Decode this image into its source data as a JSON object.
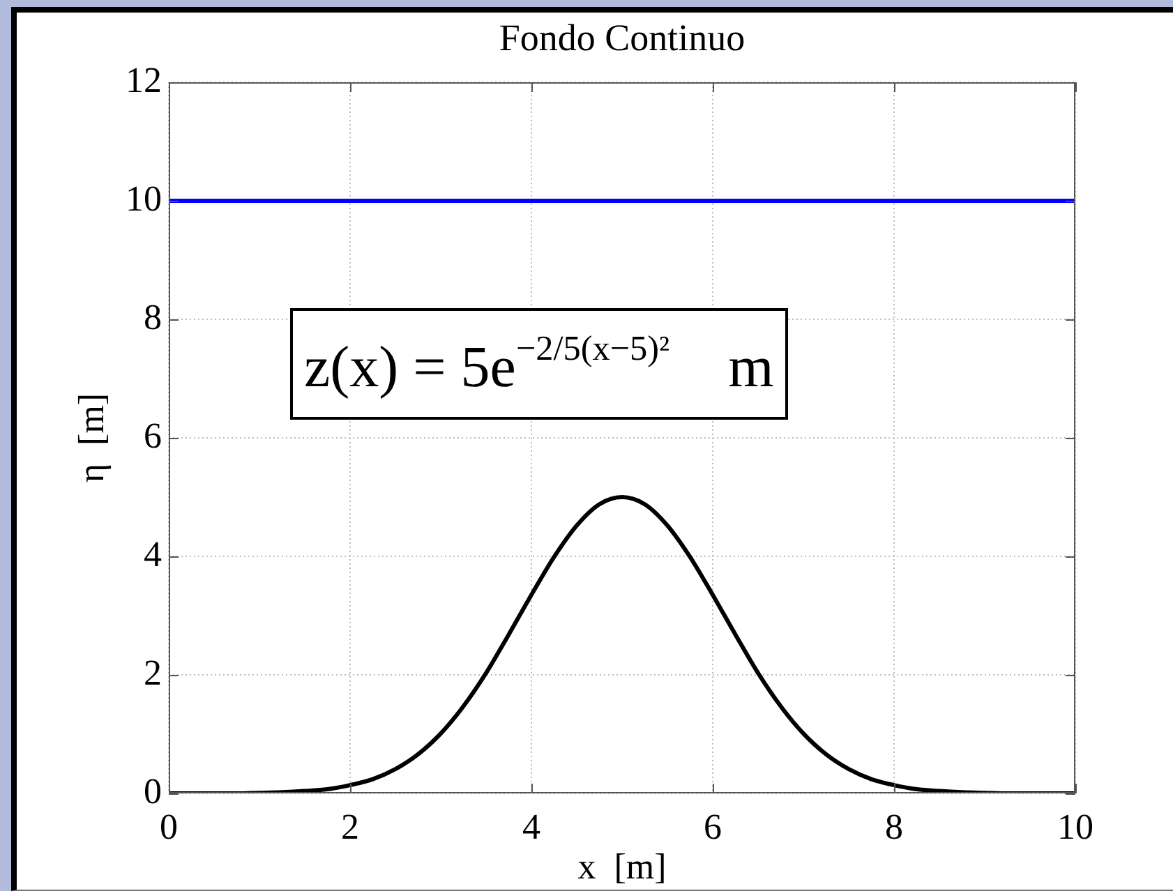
{
  "chart_data": {
    "type": "line",
    "title": "Fondo Continuo",
    "xlabel": "x  [m]",
    "ylabel": "η  [m]",
    "series": [
      {
        "color": "#0000ff",
        "x": [
          0,
          10
        ],
        "values": [
          10,
          10
        ]
      },
      {
        "color": "#000000",
        "x": [
          0,
          0.25,
          0.5,
          0.75,
          1,
          1.25,
          1.5,
          1.75,
          2,
          2.25,
          2.5,
          2.75,
          3,
          3.25,
          3.5,
          3.75,
          4,
          4.25,
          4.5,
          4.75,
          5,
          5.25,
          5.5,
          5.75,
          6,
          6.25,
          6.5,
          6.75,
          7,
          7.25,
          7.5,
          7.75,
          8,
          8.25,
          8.5,
          8.75,
          9,
          9.25,
          9.5,
          9.75,
          10
        ],
        "values": [
          0,
          0,
          0,
          0,
          0.01,
          0.02,
          0.04,
          0.07,
          0.14,
          0.24,
          0.41,
          0.66,
          1.01,
          1.47,
          2.03,
          2.68,
          3.35,
          3.99,
          4.52,
          4.88,
          5,
          4.88,
          4.52,
          3.99,
          3.35,
          2.68,
          2.03,
          1.47,
          1.01,
          0.66,
          0.41,
          0.24,
          0.14,
          0.07,
          0.04,
          0.02,
          0.01,
          0,
          0,
          0,
          0
        ]
      }
    ],
    "xlim": [
      0,
      10
    ],
    "xticks": [
      0,
      2,
      4,
      6,
      8,
      10
    ],
    "ylim": [
      0,
      12
    ],
    "yticks": [
      0,
      2,
      4,
      6,
      8,
      10,
      12
    ],
    "grid": true,
    "marker": "none",
    "line_style": "solid",
    "annotations": [
      "z(x) = 5e$^{−2/5(x−5)²}$    m"
    ]
  }
}
